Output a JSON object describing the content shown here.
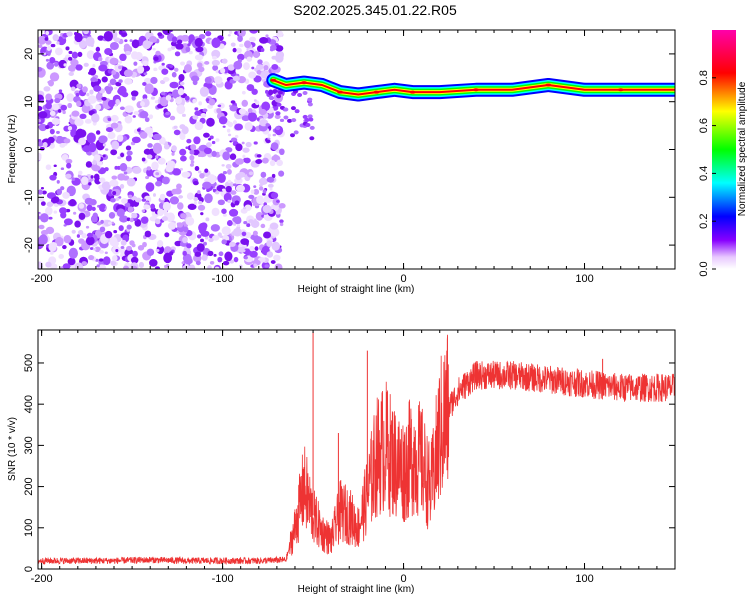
{
  "title": "S202.2025.345.01.22.R05",
  "chart_data": [
    {
      "type": "heatmap",
      "xlabel": "Height of straight line (km)",
      "ylabel": "Frequency (Hz)",
      "xlim": [
        -202,
        150
      ],
      "ylim": [
        -25,
        25
      ],
      "xticks": [
        -200,
        -100,
        0,
        100
      ],
      "yticks": [
        -20,
        -10,
        0,
        10,
        20
      ],
      "colorbar": {
        "label": "Normalized spectral amplitude",
        "range": [
          0,
          1
        ],
        "ticks": [
          0.0,
          0.2,
          0.4,
          0.6,
          0.8
        ],
        "colormap": [
          "#ffffff",
          "#e8c8ff",
          "#8800ff",
          "#0000ff",
          "#00ffff",
          "#00ff00",
          "#ffff00",
          "#ff0000",
          "#ff00aa"
        ]
      },
      "noise_region_x": [
        -202,
        -67
      ],
      "ridge": [
        {
          "x": -72,
          "f": 14.5
        },
        {
          "x": -65,
          "f": 13.5
        },
        {
          "x": -55,
          "f": 14.0
        },
        {
          "x": -45,
          "f": 13.5
        },
        {
          "x": -35,
          "f": 12.0
        },
        {
          "x": -25,
          "f": 11.5
        },
        {
          "x": -15,
          "f": 12.0
        },
        {
          "x": -5,
          "f": 12.5
        },
        {
          "x": 5,
          "f": 12.0
        },
        {
          "x": 20,
          "f": 12.0
        },
        {
          "x": 40,
          "f": 12.5
        },
        {
          "x": 60,
          "f": 12.5
        },
        {
          "x": 80,
          "f": 13.5
        },
        {
          "x": 100,
          "f": 12.5
        },
        {
          "x": 120,
          "f": 12.5
        },
        {
          "x": 150,
          "f": 12.5
        }
      ]
    },
    {
      "type": "line",
      "xlabel": "Height of straight line (km)",
      "ylabel": "SNR (10 * v/v)",
      "xlim": [
        -202,
        150
      ],
      "ylim": [
        0,
        580
      ],
      "xticks": [
        -200,
        -100,
        0,
        100
      ],
      "yticks": [
        0,
        100,
        200,
        300,
        400,
        500
      ],
      "color": "#ee3333",
      "series": [
        {
          "x": [
            -200,
            -180,
            -160,
            -140,
            -120,
            -100,
            -80,
            -65,
            -60,
            -55,
            -50,
            -45,
            -40,
            -35,
            -30,
            -25,
            -20,
            -15,
            -10,
            -5,
            0,
            5,
            10,
            15,
            20,
            25,
            30,
            40,
            60,
            80,
            100,
            120,
            150
          ],
          "values": [
            20,
            20,
            20,
            22,
            20,
            20,
            20,
            22,
            100,
            200,
            130,
            90,
            70,
            140,
            130,
            100,
            180,
            270,
            300,
            260,
            240,
            280,
            260,
            190,
            330,
            390,
            430,
            470,
            470,
            460,
            450,
            440,
            440
          ]
        }
      ],
      "spikes": [
        {
          "x": -50,
          "value": 575
        },
        {
          "x": -20,
          "value": 530
        },
        {
          "x": -36,
          "value": 330
        },
        {
          "x": 110,
          "value": 510
        }
      ]
    }
  ]
}
